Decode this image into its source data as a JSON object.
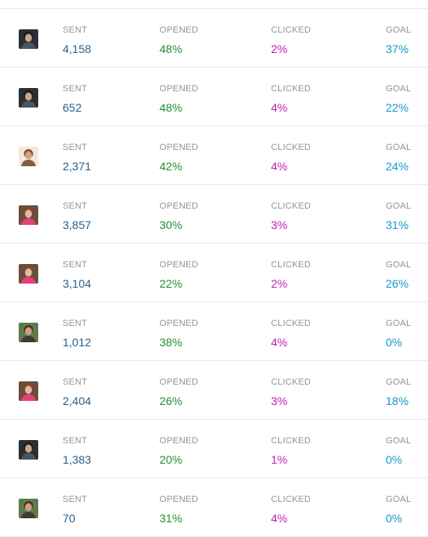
{
  "columns": {
    "sent": "SENT",
    "opened": "OPENED",
    "clicked": "CLICKED",
    "goal": "GOAL"
  },
  "avatar_types": {
    "dark": {
      "bg": "#2b2e33",
      "face": "#c9a58c",
      "hair": "#1a1a1a",
      "shirt": "#4a5563"
    },
    "light": {
      "bg": "#f3e9d8",
      "face": "#d7a17d",
      "hair": "#7a4a35",
      "shirt": "#8a5a44"
    },
    "pink": {
      "bg": "#6a4d3a",
      "face": "#e5b8a0",
      "hair": "#8a4a2a",
      "shirt": "#e8407a"
    },
    "outdoor": {
      "bg": "#5c7b4a",
      "face": "#c9a080",
      "hair": "#4a3320",
      "shirt": "#3b3b3b"
    }
  },
  "rows": [
    {
      "avatar": "dark",
      "sent": "4,158",
      "opened": "48%",
      "clicked": "2%",
      "goal": "37%"
    },
    {
      "avatar": "dark",
      "sent": "652",
      "opened": "48%",
      "clicked": "4%",
      "goal": "22%"
    },
    {
      "avatar": "light",
      "sent": "2,371",
      "opened": "42%",
      "clicked": "4%",
      "goal": "24%"
    },
    {
      "avatar": "pink",
      "sent": "3,857",
      "opened": "30%",
      "clicked": "3%",
      "goal": "31%"
    },
    {
      "avatar": "pink",
      "sent": "3,104",
      "opened": "22%",
      "clicked": "2%",
      "goal": "26%"
    },
    {
      "avatar": "outdoor",
      "sent": "1,012",
      "opened": "38%",
      "clicked": "4%",
      "goal": "0%"
    },
    {
      "avatar": "pink",
      "sent": "2,404",
      "opened": "26%",
      "clicked": "3%",
      "goal": "18%"
    },
    {
      "avatar": "dark",
      "sent": "1,383",
      "opened": "20%",
      "clicked": "1%",
      "goal": "0%"
    },
    {
      "avatar": "outdoor",
      "sent": "70",
      "opened": "31%",
      "clicked": "4%",
      "goal": "0%"
    }
  ]
}
